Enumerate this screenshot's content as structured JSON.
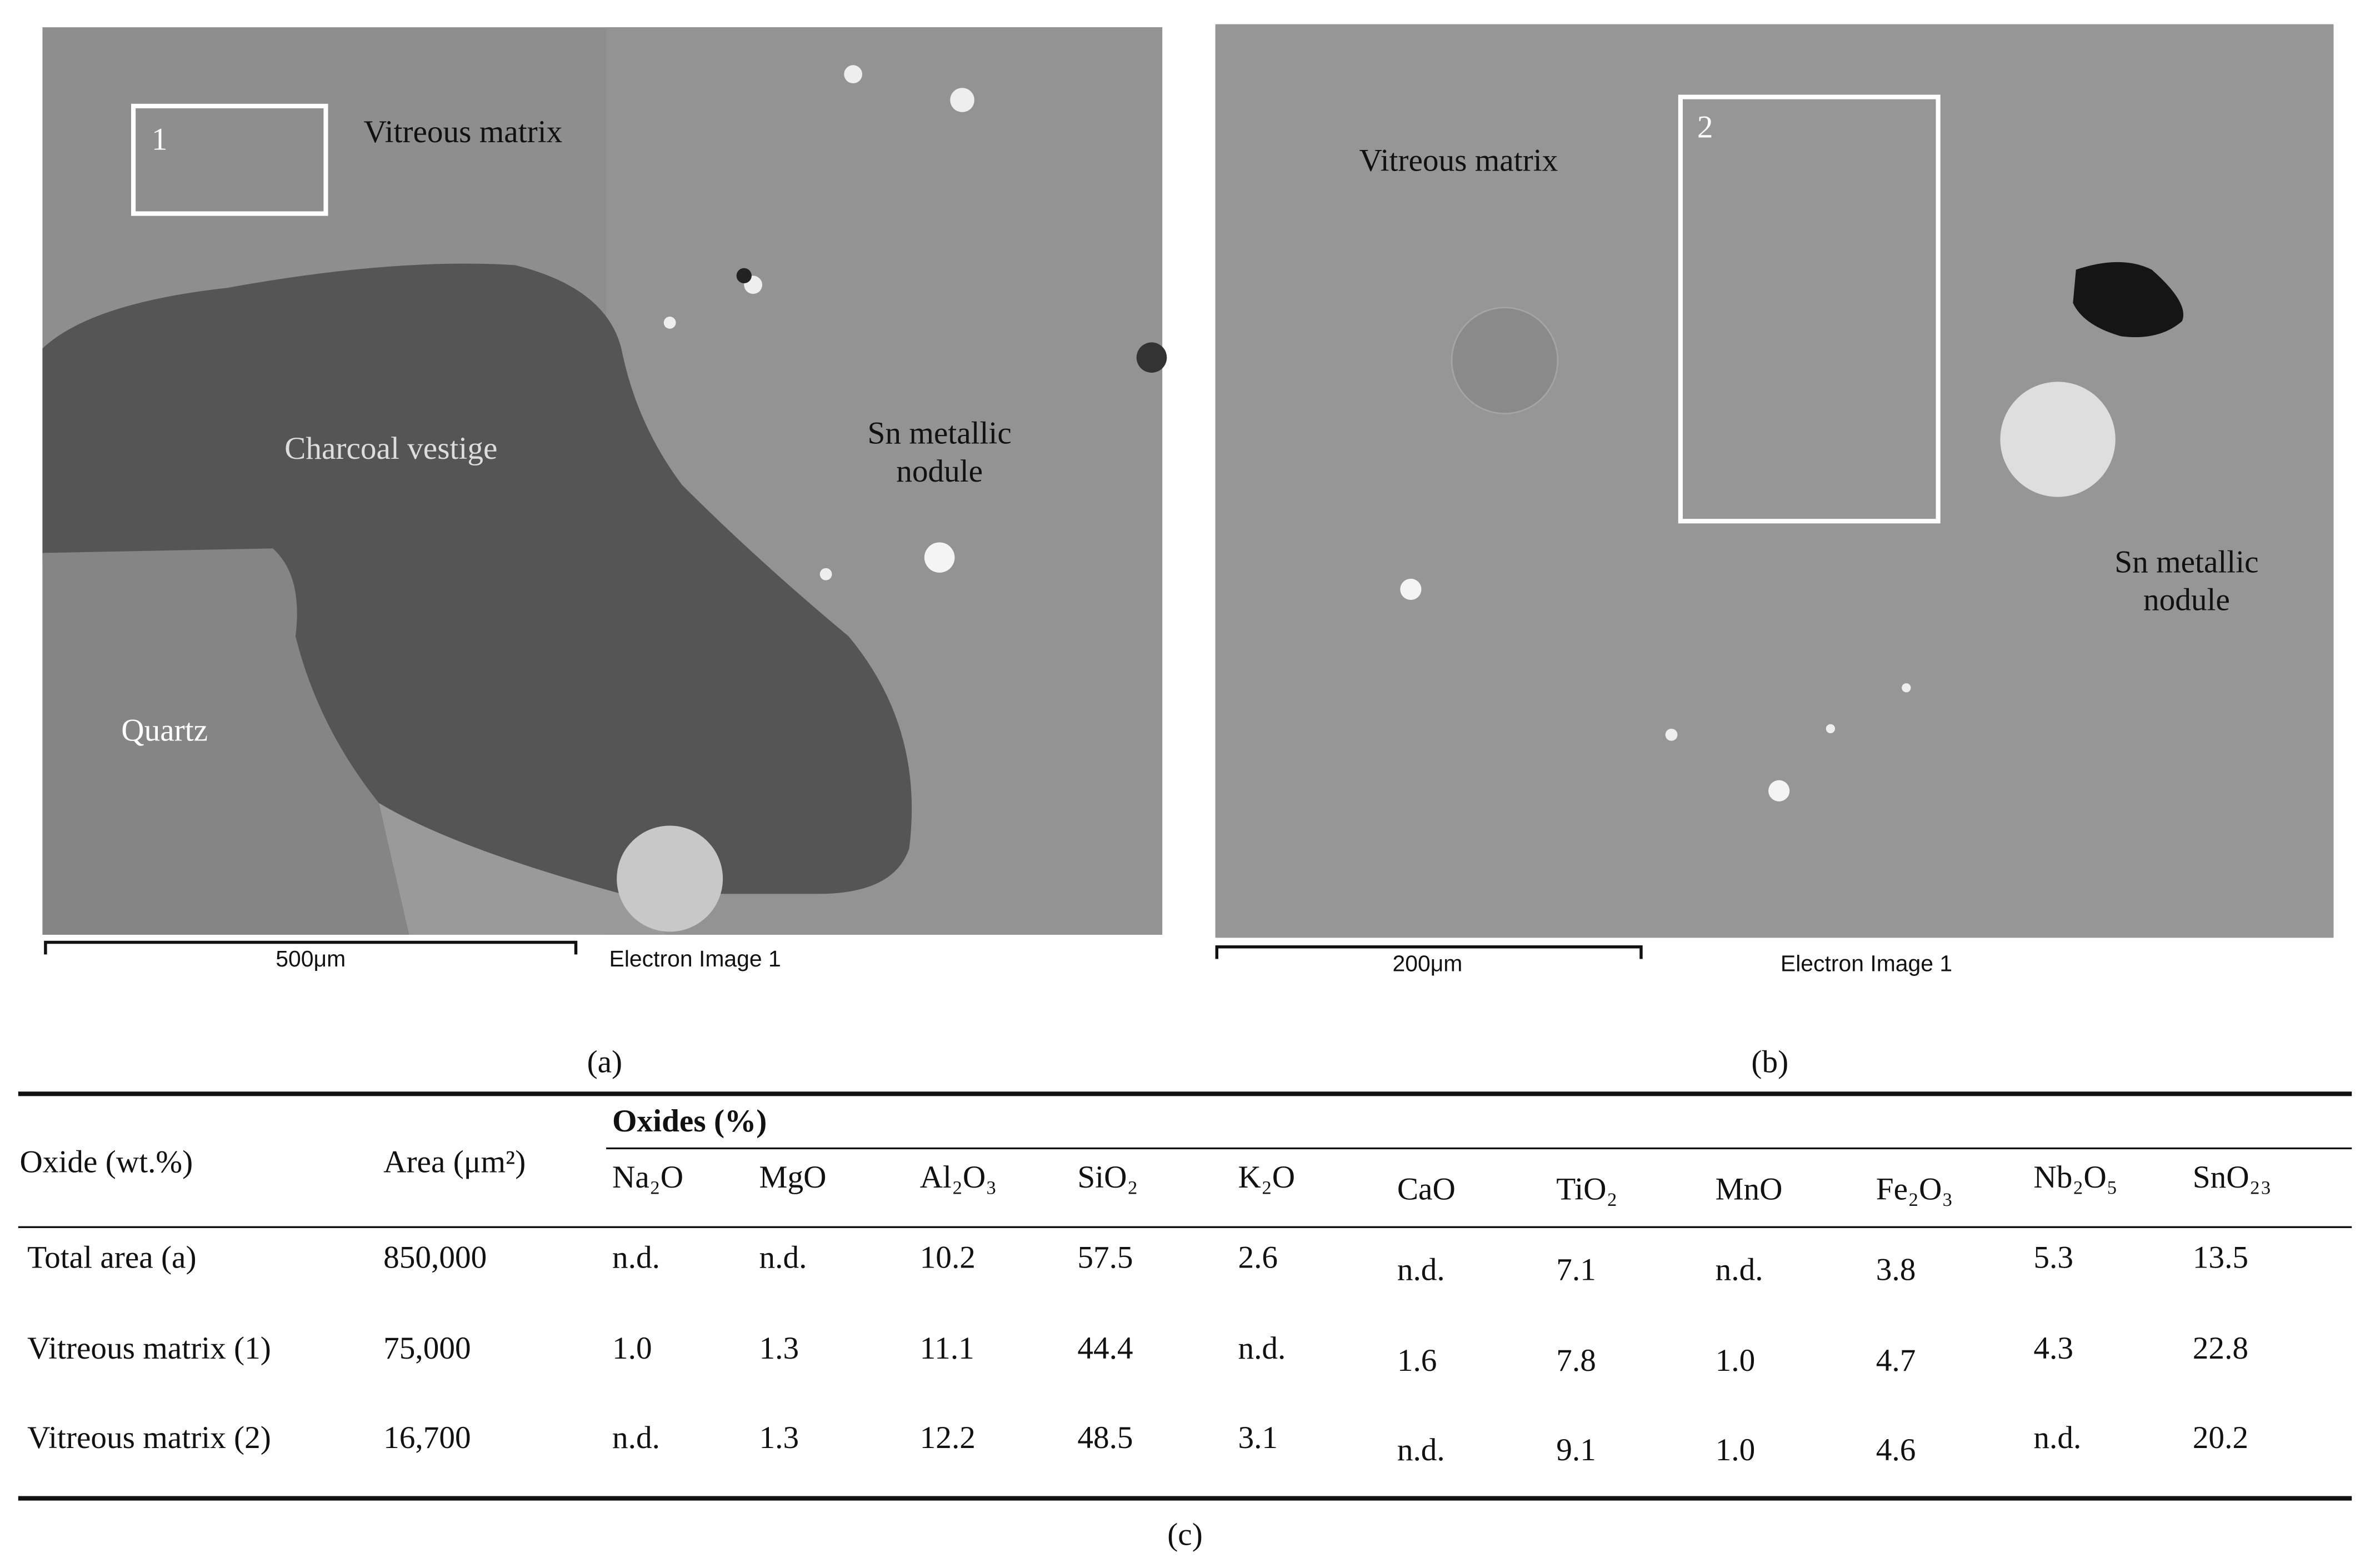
{
  "panels": [
    {
      "annotations": [
        [
          "Vitreous matrix"
        ],
        [
          "Charcoal vestige"
        ],
        [
          "Sn metallic",
          "nodule"
        ],
        [
          "Quartz"
        ]
      ],
      "box_label": "1",
      "scale_bar": "500μm",
      "image_caption": "Electron Image 1",
      "caption": "(a)"
    },
    {
      "annotations": [
        [
          "Vitreous matrix"
        ],
        [
          "Sn metallic",
          "nodule"
        ]
      ],
      "box_label": "2",
      "scale_bar": "200μm",
      "image_caption": "Electron Image 1",
      "caption": "(b)"
    }
  ],
  "table": {
    "row_header": "Oxide (wt.%)",
    "area_header": "Area (μm²)",
    "group_header": "Oxides (%)",
    "columns": [
      "Na₂O",
      "MgO",
      "Al₂O₃",
      "SiO₂",
      "K₂O",
      "CaO",
      "TiO₂",
      "MnO",
      "Fe₂O₃",
      "Nb₂O₅",
      "SnO₂₃"
    ],
    "rows": [
      [
        "Total area (a)",
        "850,000",
        "n.d.",
        "n.d.",
        "10.2",
        "57.5",
        "2.6",
        "n.d.",
        "7.1",
        "n.d.",
        "3.8",
        "5.3",
        "13.5"
      ],
      [
        "Vitreous matrix (1)",
        "75,000",
        "1.0",
        "1.3",
        "11.1",
        "44.4",
        "n.d.",
        "1.6",
        "7.8",
        "1.0",
        "4.7",
        "4.3",
        "22.8"
      ],
      [
        "Vitreous matrix (2)",
        "16,700",
        "n.d.",
        "1.3",
        "12.2",
        "48.5",
        "3.1",
        "n.d.",
        "9.1",
        "1.0",
        "4.6",
        "n.d.",
        "20.2"
      ]
    ],
    "caption": "(c)"
  }
}
